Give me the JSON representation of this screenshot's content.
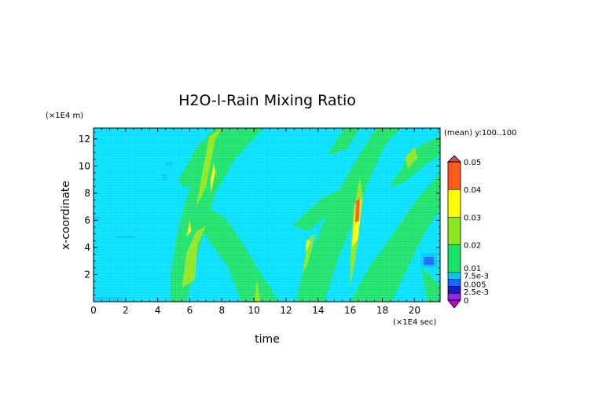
{
  "chart_data": {
    "type": "heatmap",
    "title": "H2O-l-Rain Mixing Ratio",
    "xlabel": "time",
    "ylabel": "x-coordinate",
    "x_unit_label": "(×1E4 sec)",
    "y_unit_label": "(×1E4 m)",
    "annotation": "(mean) y:100..100",
    "xlim": [
      0,
      21.6
    ],
    "ylim": [
      0,
      12.8
    ],
    "x_ticks": [
      "0",
      "2",
      "4",
      "6",
      "8",
      "10",
      "12",
      "14",
      "16",
      "18",
      "20"
    ],
    "y_ticks": [
      "2",
      "4",
      "6",
      "8",
      "10",
      "12"
    ],
    "colorbar": {
      "levels": [
        0,
        0.0025,
        0.005,
        0.0075,
        0.01,
        0.02,
        0.03,
        0.04,
        0.05
      ],
      "labels": [
        "0",
        "2.5e-3",
        "0.005",
        "7.5e-3",
        "0.01",
        "0.02",
        "0.03",
        "0.04",
        "0.05"
      ],
      "colors": [
        "#8a2be2",
        "#1b1bc8",
        "#1e64ff",
        "#00c8ff",
        "#19e26a",
        "#8ce61e",
        "#ffff00",
        "#ff5a1e"
      ],
      "under_color": "#c000c0",
      "over_color": "#c85050"
    },
    "background_class_color": "#00e0ff",
    "regions": [
      {
        "class": "0.01-0.02",
        "points": [
          [
            4.8,
            0
          ],
          [
            5.8,
            0
          ],
          [
            6.6,
            4
          ],
          [
            7.6,
            8
          ],
          [
            8.8,
            10.5
          ],
          [
            10.0,
            12
          ],
          [
            10.6,
            12.8
          ],
          [
            8.2,
            12.8
          ],
          [
            7.2,
            11.0
          ],
          [
            6.0,
            8.5
          ],
          [
            5.2,
            5
          ],
          [
            4.8,
            2
          ]
        ]
      },
      {
        "class": "0.01-0.02",
        "points": [
          [
            9.2,
            0
          ],
          [
            11.6,
            0
          ],
          [
            10.2,
            2.5
          ],
          [
            9.2,
            4.5
          ],
          [
            8.2,
            6.2
          ],
          [
            7.0,
            7.0
          ],
          [
            6.2,
            6.0
          ],
          [
            7.2,
            4.5
          ],
          [
            8.4,
            2.5
          ]
        ]
      },
      {
        "class": "0.01-0.02",
        "points": [
          [
            5.3,
            9.0
          ],
          [
            6.5,
            11.5
          ],
          [
            7.6,
            12.8
          ],
          [
            9.6,
            12.8
          ],
          [
            8.3,
            11.0
          ],
          [
            7.2,
            9.4
          ],
          [
            6.4,
            8.6
          ],
          [
            5.6,
            8.4
          ]
        ]
      },
      {
        "class": "0.01-0.02",
        "points": [
          [
            12.6,
            0
          ],
          [
            14.4,
            0
          ],
          [
            15.2,
            3
          ],
          [
            16.2,
            6
          ],
          [
            17.2,
            9
          ],
          [
            18.2,
            11.6
          ],
          [
            19.2,
            12.8
          ],
          [
            17.6,
            12.8
          ],
          [
            16.4,
            10.5
          ],
          [
            15.2,
            8
          ],
          [
            14.0,
            5
          ],
          [
            13.0,
            2
          ]
        ]
      },
      {
        "class": "0.01-0.02",
        "points": [
          [
            16.0,
            0
          ],
          [
            18.6,
            0
          ],
          [
            19.6,
            2.5
          ],
          [
            20.6,
            5.0
          ],
          [
            21.6,
            6.8
          ],
          [
            21.6,
            9.5
          ],
          [
            20.2,
            7.6
          ],
          [
            18.8,
            5.2
          ],
          [
            17.2,
            2.6
          ]
        ]
      },
      {
        "class": "0.01-0.02",
        "points": [
          [
            18.4,
            8.4
          ],
          [
            19.4,
            10.2
          ],
          [
            20.4,
            11.6
          ],
          [
            21.6,
            12.2
          ],
          [
            21.6,
            10.8
          ],
          [
            20.6,
            10.0
          ],
          [
            19.4,
            8.8
          ]
        ]
      },
      {
        "class": "0.01-0.02",
        "points": [
          [
            12.4,
            5.6
          ],
          [
            14.2,
            7.6
          ],
          [
            15.6,
            8.4
          ],
          [
            14.8,
            6.6
          ],
          [
            13.4,
            5.2
          ]
        ]
      },
      {
        "class": "0.01-0.02",
        "points": [
          [
            14.6,
            10.8
          ],
          [
            15.6,
            12.8
          ],
          [
            16.6,
            12.8
          ],
          [
            15.8,
            11.2
          ]
        ]
      },
      {
        "class": "0.01-0.02",
        "points": [
          [
            20.4,
            2.6
          ],
          [
            21.6,
            1.2
          ],
          [
            21.6,
            0
          ],
          [
            20.8,
            0
          ]
        ]
      },
      {
        "class": "0.02-0.03",
        "points": [
          [
            5.5,
            1
          ],
          [
            6.3,
            1.6
          ],
          [
            6.5,
            4.2
          ],
          [
            7.0,
            5.6
          ],
          [
            6.4,
            5.2
          ],
          [
            5.8,
            3.6
          ]
        ]
      },
      {
        "class": "0.02-0.03",
        "points": [
          [
            6.4,
            7.0
          ],
          [
            7.0,
            8.4
          ],
          [
            7.6,
            12.0
          ],
          [
            8.0,
            12.8
          ],
          [
            7.2,
            12.2
          ],
          [
            6.8,
            9.6
          ]
        ]
      },
      {
        "class": "0.02-0.03",
        "points": [
          [
            10.0,
            0
          ],
          [
            10.4,
            0
          ],
          [
            10.2,
            1.6
          ]
        ]
      },
      {
        "class": "0.02-0.03",
        "points": [
          [
            13.0,
            2.0
          ],
          [
            13.4,
            3.0
          ],
          [
            13.8,
            5.0
          ],
          [
            13.4,
            4.6
          ]
        ]
      },
      {
        "class": "0.02-0.03",
        "points": [
          [
            16.0,
            1.0
          ],
          [
            16.4,
            3.8
          ],
          [
            16.8,
            7.6
          ],
          [
            16.6,
            9.2
          ],
          [
            16.2,
            6.6
          ],
          [
            16.0,
            3.2
          ]
        ]
      },
      {
        "class": "0.02-0.03",
        "points": [
          [
            19.6,
            9.8
          ],
          [
            20.2,
            10.6
          ],
          [
            20.0,
            11.4
          ],
          [
            19.4,
            10.6
          ]
        ]
      },
      {
        "class": "0.03-0.04",
        "points": [
          [
            5.8,
            4.8
          ],
          [
            6.1,
            5.2
          ],
          [
            6.0,
            6.0
          ]
        ]
      },
      {
        "class": "0.03-0.04",
        "points": [
          [
            7.3,
            8.0
          ],
          [
            7.6,
            9.6
          ],
          [
            7.5,
            10.2
          ],
          [
            7.3,
            9.0
          ]
        ]
      },
      {
        "class": "0.03-0.04",
        "points": [
          [
            16.1,
            4.0
          ],
          [
            16.5,
            4.6
          ],
          [
            16.7,
            7.6
          ],
          [
            16.3,
            7.2
          ]
        ]
      },
      {
        "class": "0.03-0.04",
        "points": [
          [
            13.2,
            3.6
          ],
          [
            13.5,
            4.4
          ],
          [
            13.3,
            4.6
          ]
        ]
      },
      {
        "class": "0.04-0.05",
        "points": [
          [
            16.3,
            5.8
          ],
          [
            16.55,
            6.0
          ],
          [
            16.6,
            7.6
          ],
          [
            16.35,
            7.4
          ]
        ]
      },
      {
        "class": "7.5e-3-0.01",
        "points": [
          [
            1.4,
            4.7
          ],
          [
            2.6,
            4.7
          ],
          [
            2.6,
            4.85
          ],
          [
            1.4,
            4.85
          ]
        ]
      },
      {
        "class": "7.5e-3-0.01",
        "points": [
          [
            0,
            6.0
          ],
          [
            0.4,
            6.0
          ],
          [
            0.4,
            6.3
          ],
          [
            0,
            6.3
          ]
        ]
      },
      {
        "class": "7.5e-3-0.01",
        "points": [
          [
            4.5,
            10.0
          ],
          [
            4.9,
            10.0
          ],
          [
            4.9,
            10.3
          ],
          [
            4.5,
            10.3
          ]
        ]
      },
      {
        "class": "7.5e-3-0.01",
        "points": [
          [
            4.3,
            9.0
          ],
          [
            4.6,
            9.0
          ],
          [
            4.6,
            9.4
          ],
          [
            4.3,
            9.4
          ]
        ]
      },
      {
        "class": "7.5e-3-0.01",
        "points": [
          [
            0.1,
            0.1
          ],
          [
            1.8,
            0.1
          ],
          [
            1.8,
            0.35
          ],
          [
            0.1,
            0.35
          ]
        ]
      },
      {
        "class": "7.5e-3-0.01",
        "points": [
          [
            20.4,
            2.5
          ],
          [
            21.4,
            2.5
          ],
          [
            21.4,
            3.6
          ],
          [
            20.4,
            3.6
          ]
        ]
      },
      {
        "class": "0.005-7.5e-3",
        "points": [
          [
            20.6,
            2.7
          ],
          [
            21.2,
            2.7
          ],
          [
            21.2,
            3.3
          ],
          [
            20.6,
            3.3
          ]
        ]
      }
    ]
  }
}
